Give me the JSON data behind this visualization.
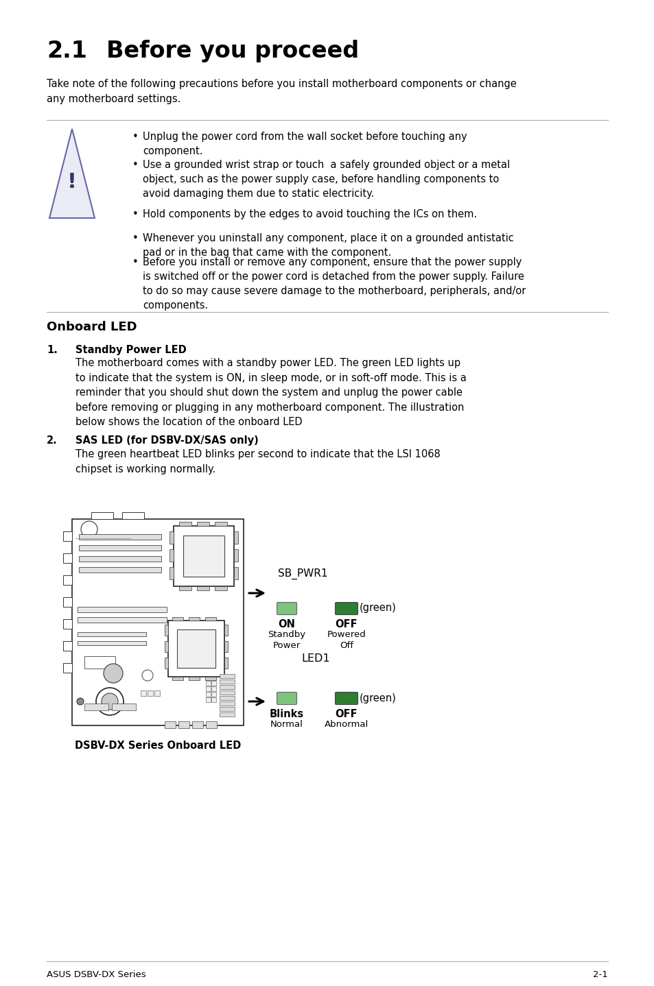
{
  "bg_color": "#ffffff",
  "title_number": "2.1",
  "title_text": "Before you proceed",
  "intro_text": "Take note of the following precautions before you install motherboard components or change\nany motherboard settings.",
  "warning_bullets": [
    "Unplug the power cord from the wall socket before touching any\ncomponent.",
    "Use a grounded wrist strap or touch  a safely grounded object or a metal\nobject, such as the power supply case, before handling components to\navoid damaging them due to static electricity.",
    "Hold components by the edges to avoid touching the ICs on them.",
    "Whenever you uninstall any component, place it on a grounded antistatic\npad or in the bag that came with the component.",
    "Before you install or remove any component, ensure that the power supply\nis switched off or the power cord is detached from the power supply. Failure\nto do so may cause severe damage to the motherboard, peripherals, and/or\ncomponents."
  ],
  "section_title": "Onboard LED",
  "item1_num": "1.",
  "item1_title": "Standby Power LED",
  "item1_text": "The motherboard comes with a standby power LED. The green LED lights up\nto indicate that the system is ON, in sleep mode, or in soft-off mode. This is a\nreminder that you should shut down the system and unplug the power cable\nbefore removing or plugging in any motherboard component. The illustration\nbelow shows the location of the onboard LED",
  "item2_num": "2.",
  "item2_title": "SAS LED (for DSBV-DX/SAS only)",
  "item2_text": "The green heartbeat LED blinks per second to indicate that the LSI 1068\nchipset is working normally.",
  "diagram_caption": "DSBV-DX Series Onboard LED",
  "sbpwr1_label": "SB_PWR1",
  "led1_label": "LED1",
  "on_label": "ON",
  "off_label1": "OFF",
  "standby_power": "Standby\nPower",
  "powered_off": "Powered\nOff",
  "blinks_label": "Blinks",
  "off_label2": "OFF",
  "normal_label": "Normal",
  "abnormal_label": "Abnormal",
  "green_label": "(green)",
  "footer_left": "ASUS DSBV-DX Series",
  "footer_right": "2-1",
  "led_on_color": "#7ec47c",
  "led_off_color": "#2e7d32",
  "text_color": "#000000",
  "line_color": "#aaaaaa"
}
